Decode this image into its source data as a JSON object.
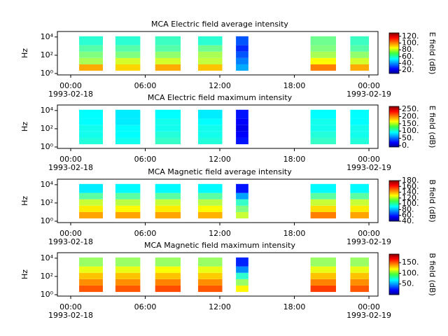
{
  "chart_data": [
    {
      "type": "spectrogram",
      "title": "MCA  Electric field average intensity",
      "ylabel": "Hz",
      "colorbar_label": "E field (dB)",
      "xlim": [
        -1.07,
        24.73
      ],
      "xticks": [
        {
          "value": 0,
          "label": "00:00"
        },
        {
          "value": 6,
          "label": "06:00"
        },
        {
          "value": 12,
          "label": "12:00"
        },
        {
          "value": 18,
          "label": "18:00"
        },
        {
          "value": 24,
          "label": "00:00"
        }
      ],
      "x_date_labels": [
        {
          "value": 0,
          "label": "1993-02-18"
        },
        {
          "value": 24,
          "label": "1993-02-19"
        }
      ],
      "log_y": true,
      "ylim": [
        0.7,
        40000
      ],
      "yticks": [
        {
          "value": 1,
          "label": "10⁰"
        },
        {
          "value": 100,
          "label": "10²"
        },
        {
          "value": 10000,
          "label": "10⁴"
        }
      ],
      "y_bins": [
        2,
        10,
        50,
        250,
        1250,
        12000
      ],
      "clim": [
        10,
        130
      ],
      "cticks": [
        {
          "value": 20,
          "label": "20."
        },
        {
          "value": 40,
          "label": "40."
        },
        {
          "value": 60,
          "label": "60."
        },
        {
          "value": 80,
          "label": "80."
        },
        {
          "value": 100,
          "label": "100."
        },
        {
          "value": 120,
          "label": "120."
        }
      ],
      "segments": [
        {
          "start": 0.68,
          "end": 2.59,
          "values": [
            95,
            75,
            70,
            65,
            60
          ]
        },
        {
          "start": 3.6,
          "end": 5.6,
          "values": [
            90,
            80,
            70,
            65,
            60
          ]
        },
        {
          "start": 6.8,
          "end": 8.85,
          "values": [
            95,
            80,
            72,
            65,
            62
          ]
        },
        {
          "start": 10.25,
          "end": 12.2,
          "values": [
            92,
            78,
            75,
            68,
            60
          ]
        },
        {
          "start": 13.3,
          "end": 14.3,
          "values": [
            45,
            40,
            35,
            30,
            35
          ]
        },
        {
          "start": 19.3,
          "end": 21.35,
          "values": [
            100,
            85,
            75,
            70,
            68
          ]
        },
        {
          "start": 22.5,
          "end": 24.0,
          "values": [
            95,
            80,
            72,
            65,
            62
          ]
        }
      ]
    },
    {
      "type": "spectrogram",
      "title": "MCA  Electric field maximum intensity",
      "ylabel": "Hz",
      "colorbar_label": "E field (dB)",
      "xlim": [
        -1.07,
        24.73
      ],
      "xticks": [
        {
          "value": 0,
          "label": "00:00"
        },
        {
          "value": 6,
          "label": "06:00"
        },
        {
          "value": 12,
          "label": "12:00"
        },
        {
          "value": 18,
          "label": "18:00"
        },
        {
          "value": 24,
          "label": "00:00"
        }
      ],
      "x_date_labels": [
        {
          "value": 0,
          "label": "1993-02-18"
        },
        {
          "value": 24,
          "label": "1993-02-19"
        }
      ],
      "log_y": true,
      "ylim": [
        0.7,
        40000
      ],
      "yticks": [
        {
          "value": 1,
          "label": "10⁰"
        },
        {
          "value": 100,
          "label": "10²"
        },
        {
          "value": 10000,
          "label": "10⁴"
        }
      ],
      "y_bins": [
        2,
        10,
        50,
        250,
        1250,
        12000
      ],
      "clim": [
        -10,
        270
      ],
      "cticks": [
        {
          "value": 0,
          "label": "0."
        },
        {
          "value": 50,
          "label": "50."
        },
        {
          "value": 100,
          "label": "100."
        },
        {
          "value": 150,
          "label": "150."
        },
        {
          "value": 200,
          "label": "200."
        },
        {
          "value": 250,
          "label": "250."
        }
      ],
      "segments": [
        {
          "start": 0.68,
          "end": 2.59,
          "values": [
            105,
            100,
            100,
            95,
            95
          ]
        },
        {
          "start": 3.6,
          "end": 5.6,
          "values": [
            100,
            95,
            95,
            90,
            90
          ]
        },
        {
          "start": 6.8,
          "end": 8.85,
          "values": [
            110,
            105,
            100,
            100,
            95
          ]
        },
        {
          "start": 10.25,
          "end": 12.2,
          "values": [
            105,
            100,
            100,
            95,
            90
          ]
        },
        {
          "start": 13.3,
          "end": 14.3,
          "values": [
            30,
            25,
            20,
            25,
            30
          ]
        },
        {
          "start": 19.3,
          "end": 21.35,
          "values": [
            110,
            105,
            100,
            100,
            95
          ]
        },
        {
          "start": 22.5,
          "end": 24.0,
          "values": [
            105,
            100,
            100,
            95,
            95
          ]
        }
      ]
    },
    {
      "type": "spectrogram",
      "title": "MCA  Magnetic field average intensity",
      "ylabel": "Hz",
      "colorbar_label": "B field (dB)",
      "xlim": [
        -1.07,
        24.73
      ],
      "xticks": [
        {
          "value": 0,
          "label": "00:00"
        },
        {
          "value": 6,
          "label": "06:00"
        },
        {
          "value": 12,
          "label": "12:00"
        },
        {
          "value": 18,
          "label": "18:00"
        },
        {
          "value": 24,
          "label": "00:00"
        }
      ],
      "x_date_labels": [
        {
          "value": 0,
          "label": "1993-02-18"
        },
        {
          "value": 24,
          "label": "1993-02-19"
        }
      ],
      "log_y": true,
      "ylim": [
        0.7,
        40000
      ],
      "yticks": [
        {
          "value": 1,
          "label": "10⁰"
        },
        {
          "value": 100,
          "label": "10²"
        },
        {
          "value": 10000,
          "label": "10⁴"
        }
      ],
      "y_bins": [
        2,
        10,
        50,
        250,
        1250,
        12000
      ],
      "clim": [
        40,
        180
      ],
      "cticks": [
        {
          "value": 40,
          "label": "40."
        },
        {
          "value": 60,
          "label": "60."
        },
        {
          "value": 80,
          "label": "80."
        },
        {
          "value": 100,
          "label": "100."
        },
        {
          "value": 120,
          "label": "120."
        },
        {
          "value": 140,
          "label": "140."
        },
        {
          "value": 160,
          "label": "160."
        },
        {
          "value": 180,
          "label": "180."
        }
      ],
      "segments": [
        {
          "start": 0.68,
          "end": 2.59,
          "values": [
            140,
            130,
            120,
            105,
            90
          ]
        },
        {
          "start": 3.6,
          "end": 5.6,
          "values": [
            140,
            128,
            118,
            105,
            92
          ]
        },
        {
          "start": 6.8,
          "end": 8.85,
          "values": [
            140,
            130,
            120,
            105,
            92
          ]
        },
        {
          "start": 10.25,
          "end": 12.2,
          "values": [
            138,
            128,
            118,
            105,
            92
          ]
        },
        {
          "start": 13.3,
          "end": 14.3,
          "values": [
            120,
            110,
            100,
            80,
            60
          ]
        },
        {
          "start": 19.3,
          "end": 21.35,
          "values": [
            145,
            132,
            120,
            105,
            92
          ]
        },
        {
          "start": 22.5,
          "end": 24.0,
          "values": [
            140,
            130,
            120,
            105,
            92
          ]
        }
      ]
    },
    {
      "type": "spectrogram",
      "title": "MCA  Magnetic field maximum intensity",
      "ylabel": "Hz",
      "colorbar_label": "B field (dB)",
      "xlim": [
        -1.07,
        24.73
      ],
      "xticks": [
        {
          "value": 0,
          "label": "00:00"
        },
        {
          "value": 6,
          "label": "06:00"
        },
        {
          "value": 12,
          "label": "12:00"
        },
        {
          "value": 18,
          "label": "18:00"
        },
        {
          "value": 24,
          "label": "00:00"
        }
      ],
      "x_date_labels": [
        {
          "value": 0,
          "label": "1993-02-18"
        },
        {
          "value": 24,
          "label": "1993-02-19"
        }
      ],
      "log_y": true,
      "ylim": [
        0.7,
        40000
      ],
      "yticks": [
        {
          "value": 1,
          "label": "10⁰"
        },
        {
          "value": 100,
          "label": "10²"
        },
        {
          "value": 10000,
          "label": "10⁴"
        }
      ],
      "y_bins": [
        2,
        10,
        50,
        250,
        1250,
        12000
      ],
      "clim": [
        0,
        190
      ],
      "cticks": [
        {
          "value": 50,
          "label": "50."
        },
        {
          "value": 100,
          "label": "100."
        },
        {
          "value": 150,
          "label": "150."
        }
      ],
      "segments": [
        {
          "start": 0.68,
          "end": 2.59,
          "values": [
            150,
            140,
            130,
            115,
            100
          ]
        },
        {
          "start": 3.6,
          "end": 5.6,
          "values": [
            150,
            140,
            130,
            115,
            100
          ]
        },
        {
          "start": 6.8,
          "end": 8.85,
          "values": [
            152,
            142,
            130,
            118,
            100
          ]
        },
        {
          "start": 10.25,
          "end": 12.2,
          "values": [
            150,
            140,
            128,
            115,
            100
          ]
        },
        {
          "start": 13.3,
          "end": 14.3,
          "values": [
            120,
            100,
            80,
            50,
            30
          ]
        },
        {
          "start": 19.3,
          "end": 21.35,
          "values": [
            155,
            142,
            130,
            115,
            100
          ]
        },
        {
          "start": 22.5,
          "end": 24.0,
          "values": [
            150,
            140,
            130,
            115,
            100
          ]
        }
      ]
    }
  ]
}
